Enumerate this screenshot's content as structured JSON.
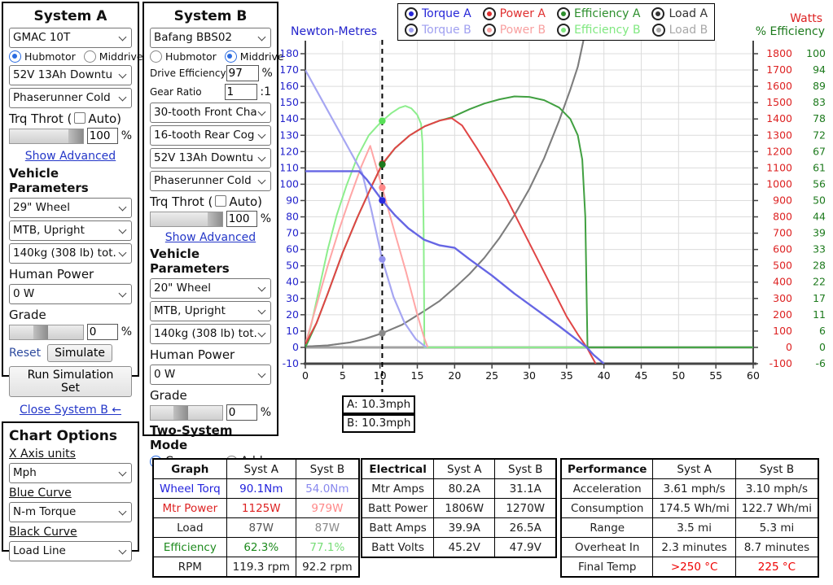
{
  "system_a": {
    "title": "System A",
    "motor_select": "GMAC 10T",
    "hubmotor_label": "Hubmotor",
    "middrive_label": "Middrive",
    "motor_type_selected": "Hubmotor",
    "battery_select": "52V 13Ah Downtu",
    "controller_select": "Phaserunner Cold",
    "throttle_prefix": "Trq Throt (",
    "throttle_suffix": "Auto)",
    "throttle_pct": "100",
    "pct": "%",
    "show_advanced": "Show Advanced",
    "vehicle_params": "Vehicle Parameters",
    "wheel_select": "29\"  Wheel",
    "posture_select": "MTB, Upright",
    "weight_select": "140kg (308 lb) tot.",
    "human_power_label": "Human Power",
    "human_power_select": "0 W",
    "grade_label": "Grade",
    "grade_value": "0",
    "reset": "Reset",
    "simulate": "Simulate",
    "run_sim": "Run Simulation Set",
    "close_b": "Close System B ←"
  },
  "system_b": {
    "title": "System B",
    "motor_select": "Bafang BBS02",
    "hubmotor_label": "Hubmotor",
    "middrive_label": "Middrive",
    "motor_type_selected": "Middrive",
    "drive_eff_label": "Drive Efficiency",
    "drive_eff_value": "97",
    "gear_ratio_label": "Gear Ratio",
    "gear_ratio_value": "1",
    "gear_ratio_suffix": ":1",
    "chainring_select": "30-tooth Front Cha",
    "cog_select": "16-tooth Rear Cog",
    "battery_select": "52V 13Ah Downtu",
    "controller_select": "Phaserunner Cold",
    "throttle_prefix": "Trq Throt (",
    "throttle_suffix": "Auto)",
    "throttle_pct": "100",
    "pct": "%",
    "show_advanced": "Show Advanced",
    "vehicle_params": "Vehicle Parameters",
    "wheel_select": "20\"  Wheel",
    "posture_select": "MTB, Upright",
    "weight_select": "140kg (308 lb) tot.",
    "human_power_label": "Human Power",
    "human_power_select": "0 W",
    "grade_label": "Grade",
    "grade_value": "0",
    "two_system_label": "Two-System Mode",
    "compare_label": "Compare",
    "add_label": "Add",
    "mode_selected": "Compare"
  },
  "chart_options": {
    "title": "Chart Options",
    "x_axis_label": "X Axis units",
    "x_axis_select": "Mph",
    "blue_label": "Blue Curve",
    "blue_select": "N-m Torque",
    "black_label": "Black Curve",
    "black_select": "Load Line"
  },
  "legend": {
    "rows": [
      [
        {
          "label": "Torque A",
          "color": "#2626d8"
        },
        {
          "label": "Power A",
          "color": "#e03030"
        },
        {
          "label": "Efficiency A",
          "color": "#2d8f2d"
        },
        {
          "label": "Load A",
          "color": "#333333"
        }
      ],
      [
        {
          "label": "Torque B",
          "color": "#9f9ff0"
        },
        {
          "label": "Power B",
          "color": "#f8a0a0"
        },
        {
          "label": "Efficiency B",
          "color": "#80e880"
        },
        {
          "label": "Load B",
          "color": "#a8a8a8"
        }
      ]
    ]
  },
  "cursor": {
    "a": "A: 10.3mph",
    "b": "B: 10.3mph"
  },
  "chart_data": {
    "type": "line",
    "x_axis": {
      "units": "Mph",
      "min": 0,
      "max": 60,
      "ticks": [
        0,
        5,
        10,
        15,
        20,
        25,
        30,
        35,
        40,
        45,
        50,
        55,
        60
      ]
    },
    "left_axis": {
      "label": "Newton-Metres",
      "color": "#2323cc",
      "min": -10,
      "max": 180,
      "ticks": [
        180,
        170,
        160,
        150,
        140,
        130,
        120,
        110,
        100,
        90,
        80,
        70,
        60,
        50,
        40,
        30,
        20,
        10,
        0,
        -10
      ]
    },
    "right_axis_watts": {
      "label": "Watts",
      "color": "#dd2222",
      "ticks": [
        1800,
        1700,
        1600,
        1500,
        1400,
        1300,
        1200,
        1100,
        1000,
        900,
        800,
        700,
        600,
        500,
        400,
        300,
        200,
        100,
        0,
        -100
      ]
    },
    "right_axis_eff": {
      "label": "% Efficiency",
      "color": "#1d7a1d",
      "ticks": [
        100,
        94,
        89,
        83,
        78,
        72,
        67,
        61,
        56,
        50,
        44,
        39,
        33,
        28,
        22,
        17,
        11,
        6,
        0,
        -6
      ]
    },
    "grid": true,
    "cursor_mph": 10.3,
    "series": [
      {
        "name": "load-b",
        "color": "#b2b2b2",
        "width": 2,
        "points": [
          [
            0,
            0.5
          ],
          [
            3,
            1.2
          ],
          [
            6,
            3
          ],
          [
            8,
            5.2
          ],
          [
            10.3,
            8.7
          ],
          [
            13,
            14
          ],
          [
            16,
            22.5
          ],
          [
            18,
            28.5
          ],
          [
            20,
            36.5
          ],
          [
            22,
            45
          ],
          [
            24,
            55
          ],
          [
            26,
            67
          ],
          [
            28,
            81
          ],
          [
            30,
            97
          ],
          [
            32,
            116
          ],
          [
            34,
            139
          ],
          [
            35.5,
            158
          ],
          [
            36.5,
            172
          ],
          [
            37.3,
            189
          ]
        ]
      },
      {
        "name": "load-a",
        "color": "#7d7d7d",
        "width": 2,
        "points": [
          [
            0,
            0.5
          ],
          [
            3,
            1.2
          ],
          [
            6,
            3
          ],
          [
            8,
            5.2
          ],
          [
            10.3,
            8.7
          ],
          [
            13,
            14
          ],
          [
            16,
            22.5
          ],
          [
            18,
            28.5
          ],
          [
            20,
            36.5
          ],
          [
            22,
            45
          ],
          [
            24,
            55
          ],
          [
            26,
            67
          ],
          [
            28,
            81
          ],
          [
            30,
            97
          ],
          [
            32,
            116
          ],
          [
            34,
            139
          ],
          [
            35.5,
            158
          ],
          [
            36.5,
            172
          ],
          [
            37.3,
            189
          ]
        ]
      },
      {
        "name": "efficiency-b",
        "color": "#8dee8d",
        "width": 2,
        "points": [
          [
            0,
            0
          ],
          [
            0.8,
            14
          ],
          [
            1.8,
            35
          ],
          [
            3,
            60
          ],
          [
            4.2,
            81
          ],
          [
            5.5,
            99
          ],
          [
            7,
            117
          ],
          [
            8.5,
            130
          ],
          [
            9.5,
            135
          ],
          [
            10.3,
            138.8
          ],
          [
            11.5,
            143.5
          ],
          [
            12.6,
            146.8
          ],
          [
            13.4,
            148
          ],
          [
            14.2,
            146.5
          ],
          [
            15,
            142.5
          ],
          [
            15.5,
            137
          ],
          [
            15.7,
            125
          ],
          [
            15.85,
            70
          ],
          [
            15.95,
            0
          ],
          [
            60,
            0
          ]
        ]
      },
      {
        "name": "power-b",
        "color": "#ffa6a6",
        "width": 2,
        "points": [
          [
            0,
            2
          ],
          [
            1.5,
            26
          ],
          [
            3,
            50
          ],
          [
            4.5,
            72
          ],
          [
            6,
            92
          ],
          [
            7.5,
            111
          ],
          [
            8.7,
            123.5
          ],
          [
            10.3,
            97.9
          ],
          [
            12,
            70
          ],
          [
            13.5,
            46
          ],
          [
            15,
            20
          ],
          [
            15.9,
            6
          ],
          [
            16.4,
            0
          ]
        ]
      },
      {
        "name": "torque-b",
        "color": "#a6a6f2",
        "width": 2.2,
        "points": [
          [
            0,
            170
          ],
          [
            7.6,
            107
          ],
          [
            8.8,
            85
          ],
          [
            10.3,
            54
          ],
          [
            11.8,
            31
          ],
          [
            13.3,
            15
          ],
          [
            14.8,
            5
          ],
          [
            16.2,
            0
          ]
        ]
      },
      {
        "name": "efficiency-a",
        "color": "#41a041",
        "width": 2,
        "points": [
          [
            0,
            0
          ],
          [
            1.5,
            15
          ],
          [
            3,
            33
          ],
          [
            5,
            58
          ],
          [
            7,
            80
          ],
          [
            9,
            100
          ],
          [
            10.3,
            112.1
          ],
          [
            12,
            122
          ],
          [
            14,
            130
          ],
          [
            16,
            135.5
          ],
          [
            18,
            139
          ],
          [
            19.6,
            141
          ],
          [
            22,
            146
          ],
          [
            24,
            149.5
          ],
          [
            26,
            152
          ],
          [
            28,
            153.8
          ],
          [
            30,
            153.5
          ],
          [
            32,
            151.5
          ],
          [
            34,
            147
          ],
          [
            35.5,
            140
          ],
          [
            36.5,
            130
          ],
          [
            37.1,
            115
          ],
          [
            37.5,
            80
          ],
          [
            37.8,
            0
          ],
          [
            60,
            0
          ]
        ]
      },
      {
        "name": "power-a",
        "color": "#e04545",
        "width": 2,
        "points": [
          [
            0,
            2
          ],
          [
            1.5,
            15
          ],
          [
            3,
            33
          ],
          [
            5,
            58
          ],
          [
            7,
            80
          ],
          [
            9,
            100
          ],
          [
            10.3,
            112.5
          ],
          [
            12,
            122
          ],
          [
            14,
            130
          ],
          [
            16,
            135.5
          ],
          [
            18,
            139
          ],
          [
            19.6,
            140.5
          ],
          [
            21,
            136
          ],
          [
            23,
            122
          ],
          [
            25,
            107
          ],
          [
            27,
            91
          ],
          [
            29,
            73
          ],
          [
            31,
            55
          ],
          [
            33,
            37
          ],
          [
            35,
            19
          ],
          [
            36.5,
            8
          ],
          [
            37.7,
            0
          ],
          [
            38.3,
            -5
          ],
          [
            38.9,
            -10
          ]
        ]
      },
      {
        "name": "torque-a",
        "color": "#6666e4",
        "width": 2.4,
        "points": [
          [
            0,
            108
          ],
          [
            7.2,
            108
          ],
          [
            8.2,
            103
          ],
          [
            10.3,
            90.1
          ],
          [
            12,
            81
          ],
          [
            13.8,
            73
          ],
          [
            15.9,
            66
          ],
          [
            18,
            62.5
          ],
          [
            20,
            61
          ],
          [
            22,
            54
          ],
          [
            25,
            44
          ],
          [
            28,
            33
          ],
          [
            31,
            23
          ],
          [
            34,
            13
          ],
          [
            36,
            6
          ],
          [
            37.7,
            0
          ],
          [
            38.6,
            -4.5
          ],
          [
            40,
            -10
          ]
        ]
      }
    ],
    "markers": [
      {
        "name": "efficiency-b",
        "mph": 10.3,
        "value": 138.8,
        "color": "#58e058"
      },
      {
        "name": "power-a",
        "mph": 10.3,
        "value": 112.5,
        "color": "#cc2222"
      },
      {
        "name": "efficiency-a",
        "mph": 10.3,
        "value": 112.1,
        "color": "#1d7a1d"
      },
      {
        "name": "power-b",
        "mph": 10.3,
        "value": 97.9,
        "color": "#ff8888"
      },
      {
        "name": "torque-a",
        "mph": 10.3,
        "value": 90.1,
        "color": "#2a2ae0"
      },
      {
        "name": "torque-b",
        "mph": 10.3,
        "value": 54,
        "color": "#9292ee"
      },
      {
        "name": "load",
        "mph": 10.3,
        "value": 8.7,
        "color": "#8a8a8a"
      }
    ]
  },
  "tables": {
    "graph": {
      "headers": [
        "Graph",
        "Syst A",
        "Syst B"
      ],
      "rows": [
        {
          "cells": [
            {
              "t": "Wheel Torq",
              "c": "#2222dd"
            },
            {
              "t": "90.1Nm",
              "c": "#2222dd"
            },
            {
              "t": "54.0Nm",
              "c": "#8888ee"
            }
          ]
        },
        {
          "cells": [
            {
              "t": "Mtr Power",
              "c": "#dd2222"
            },
            {
              "t": "1125W",
              "c": "#dd2222"
            },
            {
              "t": "979W",
              "c": "#ff8888"
            }
          ]
        },
        {
          "cells": [
            {
              "t": "Load",
              "c": "#222222"
            },
            {
              "t": "87W",
              "c": "#555555"
            },
            {
              "t": "87W",
              "c": "#888888"
            }
          ]
        },
        {
          "cells": [
            {
              "t": "Efficiency",
              "c": "#1d8a1d"
            },
            {
              "t": "62.3%",
              "c": "#1d8a1d"
            },
            {
              "t": "77.1%",
              "c": "#77dd77"
            }
          ]
        },
        {
          "cells": [
            {
              "t": "RPM",
              "c": "#222222"
            },
            {
              "t": "119.3 rpm",
              "c": "#222222"
            },
            {
              "t": "92.2 rpm",
              "c": "#222222"
            }
          ]
        }
      ]
    },
    "electrical": {
      "headers": [
        "Electrical",
        "Syst A",
        "Syst B"
      ],
      "rows": [
        {
          "cells": [
            {
              "t": "Mtr Amps",
              "c": "#222222"
            },
            {
              "t": "80.2A",
              "c": "#222222"
            },
            {
              "t": "31.1A",
              "c": "#222222"
            }
          ]
        },
        {
          "cells": [
            {
              "t": "Batt Power",
              "c": "#222222"
            },
            {
              "t": "1806W",
              "c": "#222222"
            },
            {
              "t": "1270W",
              "c": "#222222"
            }
          ]
        },
        {
          "cells": [
            {
              "t": "Batt Amps",
              "c": "#222222"
            },
            {
              "t": "39.9A",
              "c": "#222222"
            },
            {
              "t": "26.5A",
              "c": "#222222"
            }
          ]
        },
        {
          "cells": [
            {
              "t": "Batt Volts",
              "c": "#222222"
            },
            {
              "t": "45.2V",
              "c": "#222222"
            },
            {
              "t": "47.9V",
              "c": "#222222"
            }
          ]
        }
      ]
    },
    "performance": {
      "headers": [
        "Performance",
        "Syst A",
        "Syst B"
      ],
      "rows": [
        {
          "cells": [
            {
              "t": "Acceleration",
              "c": "#222222"
            },
            {
              "t": "3.61 mph/s",
              "c": "#222222"
            },
            {
              "t": "3.10 mph/s",
              "c": "#222222"
            }
          ]
        },
        {
          "cells": [
            {
              "t": "Consumption",
              "c": "#222222"
            },
            {
              "t": "174.5 Wh/mi",
              "c": "#222222"
            },
            {
              "t": "122.7 Wh/mi",
              "c": "#222222"
            }
          ]
        },
        {
          "cells": [
            {
              "t": "Range",
              "c": "#222222"
            },
            {
              "t": "3.5 mi",
              "c": "#222222"
            },
            {
              "t": "5.3 mi",
              "c": "#222222"
            }
          ]
        },
        {
          "cells": [
            {
              "t": "Overheat In",
              "c": "#222222"
            },
            {
              "t": "2.3 minutes",
              "c": "#222222"
            },
            {
              "t": "8.7 minutes",
              "c": "#222222"
            }
          ]
        },
        {
          "cells": [
            {
              "t": "Final Temp",
              "c": "#222222"
            },
            {
              "t": ">250 °C",
              "c": "#ee0000"
            },
            {
              "t": "225 °C",
              "c": "#ee0000"
            }
          ]
        }
      ]
    }
  }
}
